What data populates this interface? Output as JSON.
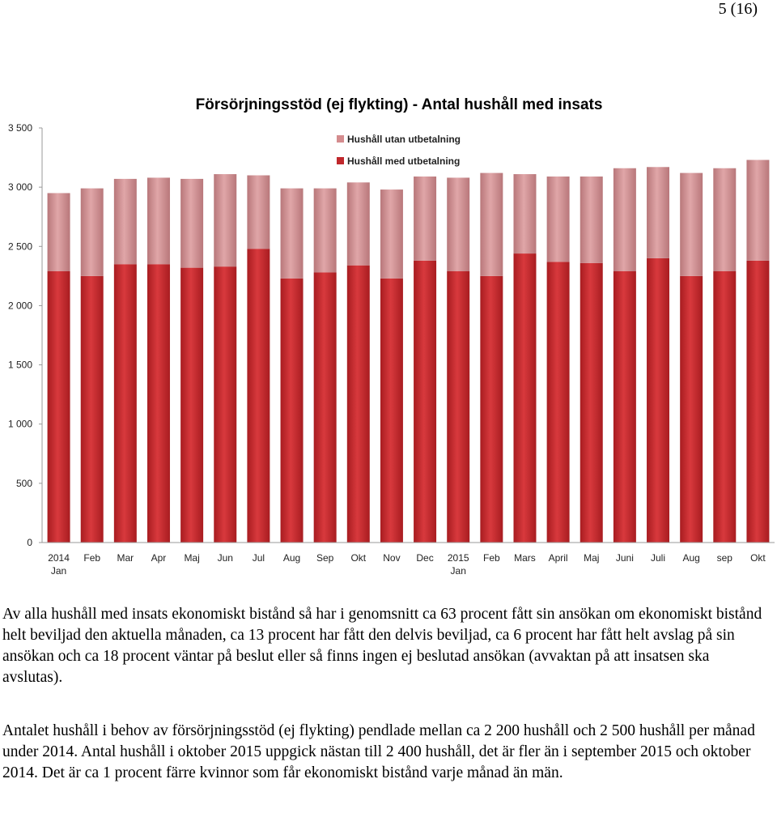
{
  "page": {
    "page_number": "5 (16)"
  },
  "chart_data": {
    "type": "bar",
    "stacked": true,
    "title": "Försörjningsstöd (ej flykting) - Antal hushåll med insats",
    "categories": [
      [
        "2014",
        "Jan"
      ],
      [
        "Feb"
      ],
      [
        "Mar"
      ],
      [
        "Apr"
      ],
      [
        "Maj"
      ],
      [
        "Jun"
      ],
      [
        "Jul"
      ],
      [
        "Aug"
      ],
      [
        "Sep"
      ],
      [
        "Okt"
      ],
      [
        "Nov"
      ],
      [
        "Dec"
      ],
      [
        "2015",
        "Jan"
      ],
      [
        "Feb"
      ],
      [
        "Mars"
      ],
      [
        "April"
      ],
      [
        "Maj"
      ],
      [
        "Juni"
      ],
      [
        "Juli"
      ],
      [
        "Aug"
      ],
      [
        "sep"
      ],
      [
        "Okt"
      ]
    ],
    "series": [
      {
        "name": "Hushåll med utbetalning",
        "color": "#c0282c",
        "values": [
          2290,
          2250,
          2350,
          2350,
          2320,
          2330,
          2480,
          2230,
          2280,
          2340,
          2230,
          2380,
          2290,
          2250,
          2440,
          2370,
          2360,
          2290,
          2400,
          2250,
          2290,
          2380
        ]
      },
      {
        "name": "Hushåll utan utbetalning",
        "color": "#d48c8e",
        "values": [
          660,
          740,
          720,
          730,
          750,
          780,
          620,
          760,
          710,
          700,
          750,
          710,
          790,
          870,
          670,
          720,
          730,
          870,
          770,
          870,
          870,
          850
        ]
      }
    ],
    "y_ticks": [
      "0",
      "500",
      "1 000",
      "1 500",
      "2 000",
      "2 500",
      "3 000",
      "3 500"
    ],
    "ylim": [
      0,
      3500
    ],
    "legend_placement": "top-center",
    "grid": false
  },
  "text": {
    "paragraph1": "Av alla hushåll med insats ekonomiskt bistånd så har i genomsnitt ca 63 procent fått sin ansökan om ekonomiskt bistånd helt beviljad den aktuella månaden, ca 13 procent har fått den delvis beviljad, ca 6 procent har fått helt avslag på sin ansökan och ca 18 procent väntar på beslut eller så finns ingen ej beslutad ansökan (avvaktan på att insatsen ska avslutas).",
    "paragraph2": "Antalet hushåll i behov av försörjningsstöd (ej flykting) pendlade mellan ca 2 200 hushåll och 2 500 hushåll per månad under 2014. Antal hushåll i oktober 2015 uppgick nästan till 2 400 hushåll, det är fler än i september 2015 och oktober 2014. Det är ca 1 procent färre kvinnor som får ekonomiskt bistånd varje månad än män."
  }
}
